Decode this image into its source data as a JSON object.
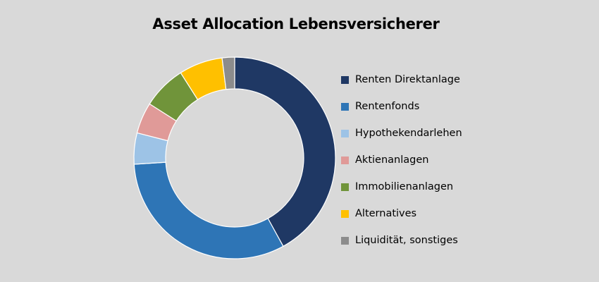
{
  "chart_data": {
    "type": "pie",
    "variant": "donut",
    "title": "Asset Allocation Lebensversicherer",
    "legend_placement": "right",
    "series": [
      {
        "name": "Renten Direktanlage",
        "value": 42.0,
        "color": "#1f3864"
      },
      {
        "name": "Rentenfonds",
        "value": 32.0,
        "color": "#2e75b6"
      },
      {
        "name": "Hypothekendarlehen",
        "value": 5.0,
        "color": "#9dc3e6"
      },
      {
        "name": "Aktienanlagen",
        "value": 5.0,
        "color": "#e09a98"
      },
      {
        "name": "Immobilienanlagen",
        "value": 7.0,
        "color": "#70943a"
      },
      {
        "name": "Alternatives",
        "value": 7.0,
        "color": "#ffc000"
      },
      {
        "name": "Liquidität, sonstiges",
        "value": 2.0,
        "color": "#8c8c8c"
      }
    ]
  }
}
